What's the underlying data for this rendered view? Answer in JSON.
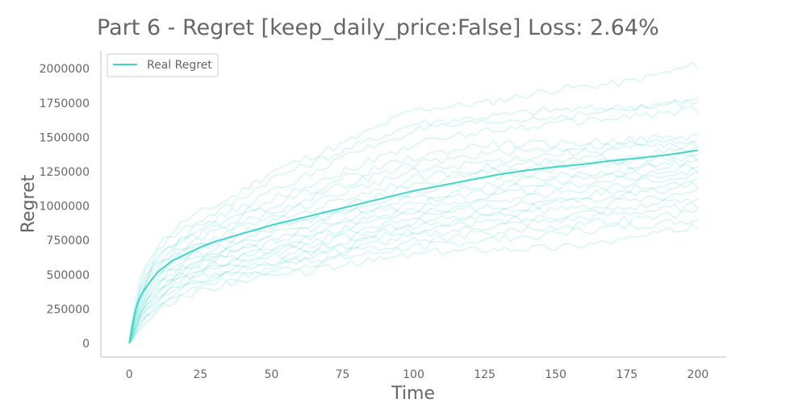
{
  "chart_data": {
    "type": "line",
    "title": "Part 6 - Regret [keep_daily_price:False] Loss: 2.64%",
    "xlabel": "Time",
    "ylabel": "Regret",
    "xlim": [
      -10,
      210
    ],
    "ylim": [
      -100000,
      2130000
    ],
    "x_ticks": [
      0,
      25,
      50,
      75,
      100,
      125,
      150,
      175,
      200
    ],
    "x_tick_labels": [
      "0",
      "25",
      "50",
      "75",
      "100",
      "125",
      "150",
      "175",
      "200"
    ],
    "y_ticks": [
      0,
      250000,
      500000,
      750000,
      1000000,
      1250000,
      1500000,
      1750000,
      2000000
    ],
    "y_tick_labels": [
      "0",
      "250000",
      "500000",
      "750000",
      "1000000",
      "1250000",
      "1500000",
      "1750000",
      "2000000"
    ],
    "grid": false,
    "legend": {
      "position": "top-left",
      "entries": [
        "Real Regret"
      ]
    },
    "colors": {
      "series": "#40d5c8",
      "axis": "#cccccc",
      "text": "#666666"
    },
    "mean_series": {
      "name": "Real Regret",
      "x": [
        0,
        1,
        2,
        3,
        5,
        7,
        10,
        15,
        20,
        25,
        30,
        40,
        50,
        60,
        70,
        80,
        90,
        100,
        110,
        120,
        130,
        140,
        150,
        160,
        170,
        180,
        190,
        200
      ],
      "values": [
        0,
        130000,
        230000,
        300000,
        380000,
        440000,
        520000,
        600000,
        650000,
        700000,
        740000,
        800000,
        860000,
        910000,
        960000,
        1010000,
        1060000,
        1110000,
        1150000,
        1190000,
        1230000,
        1260000,
        1285000,
        1305000,
        1330000,
        1350000,
        1375000,
        1405000
      ]
    },
    "runs": {
      "x": [
        0,
        2,
        5,
        10,
        20,
        35,
        50,
        75,
        100,
        125,
        150,
        175,
        200
      ],
      "series": [
        {
          "values": [
            0,
            280000,
            550000,
            720000,
            900000,
            1050000,
            1250000,
            1450000,
            1700000,
            1750000,
            1850000,
            1900000,
            2030000
          ]
        },
        {
          "values": [
            0,
            250000,
            500000,
            700000,
            850000,
            1000000,
            1200000,
            1400000,
            1600000,
            1650000,
            1700000,
            1720000,
            1770000
          ]
        },
        {
          "values": [
            0,
            220000,
            480000,
            650000,
            800000,
            950000,
            1100000,
            1350000,
            1550000,
            1600000,
            1650000,
            1700000,
            1760000
          ]
        },
        {
          "values": [
            0,
            230000,
            450000,
            620000,
            780000,
            900000,
            1050000,
            1250000,
            1450000,
            1550000,
            1600000,
            1650000,
            1700000
          ]
        },
        {
          "values": [
            0,
            200000,
            430000,
            600000,
            750000,
            880000,
            1000000,
            1200000,
            1350000,
            1450000,
            1450000,
            1480000,
            1510000
          ]
        },
        {
          "values": [
            0,
            190000,
            420000,
            580000,
            720000,
            850000,
            950000,
            1150000,
            1300000,
            1380000,
            1420000,
            1450000,
            1480000
          ]
        },
        {
          "values": [
            0,
            180000,
            400000,
            550000,
            700000,
            800000,
            920000,
            1100000,
            1250000,
            1320000,
            1380000,
            1420000,
            1450000
          ]
        },
        {
          "values": [
            0,
            170000,
            380000,
            520000,
            680000,
            780000,
            880000,
            1050000,
            1200000,
            1280000,
            1320000,
            1370000,
            1410000
          ]
        },
        {
          "values": [
            0,
            160000,
            360000,
            500000,
            650000,
            750000,
            850000,
            1000000,
            1150000,
            1250000,
            1300000,
            1330000,
            1380000
          ]
        },
        {
          "values": [
            0,
            150000,
            340000,
            480000,
            620000,
            720000,
            820000,
            970000,
            1100000,
            1200000,
            1260000,
            1300000,
            1350000
          ]
        },
        {
          "values": [
            0,
            140000,
            320000,
            460000,
            600000,
            700000,
            790000,
            940000,
            1050000,
            1150000,
            1220000,
            1260000,
            1320000
          ]
        },
        {
          "values": [
            0,
            130000,
            300000,
            440000,
            580000,
            680000,
            760000,
            900000,
            1020000,
            1100000,
            1180000,
            1230000,
            1290000
          ]
        },
        {
          "values": [
            0,
            120000,
            280000,
            420000,
            560000,
            650000,
            730000,
            870000,
            980000,
            1060000,
            1140000,
            1200000,
            1260000
          ]
        },
        {
          "values": [
            0,
            110000,
            270000,
            400000,
            540000,
            630000,
            700000,
            840000,
            950000,
            1020000,
            1100000,
            1160000,
            1230000
          ]
        },
        {
          "values": [
            0,
            100000,
            250000,
            380000,
            520000,
            600000,
            680000,
            800000,
            920000,
            980000,
            1050000,
            1120000,
            1200000
          ]
        },
        {
          "values": [
            0,
            95000,
            240000,
            360000,
            500000,
            580000,
            650000,
            770000,
            880000,
            950000,
            1010000,
            1080000,
            1150000
          ]
        },
        {
          "values": [
            0,
            90000,
            230000,
            340000,
            480000,
            560000,
            620000,
            740000,
            850000,
            920000,
            970000,
            1030000,
            1100000
          ]
        },
        {
          "values": [
            0,
            85000,
            220000,
            320000,
            460000,
            540000,
            600000,
            710000,
            820000,
            880000,
            930000,
            990000,
            1050000
          ]
        },
        {
          "values": [
            0,
            80000,
            200000,
            300000,
            440000,
            520000,
            580000,
            680000,
            780000,
            850000,
            890000,
            950000,
            1000000
          ]
        },
        {
          "values": [
            0,
            75000,
            180000,
            280000,
            420000,
            500000,
            550000,
            650000,
            750000,
            800000,
            850000,
            900000,
            950000
          ]
        },
        {
          "values": [
            0,
            70000,
            160000,
            260000,
            400000,
            470000,
            520000,
            620000,
            700000,
            750000,
            800000,
            850000,
            900000
          ]
        },
        {
          "values": [
            0,
            60000,
            140000,
            240000,
            350000,
            440000,
            480000,
            570000,
            650000,
            690000,
            700000,
            760000,
            850000
          ]
        }
      ]
    }
  }
}
